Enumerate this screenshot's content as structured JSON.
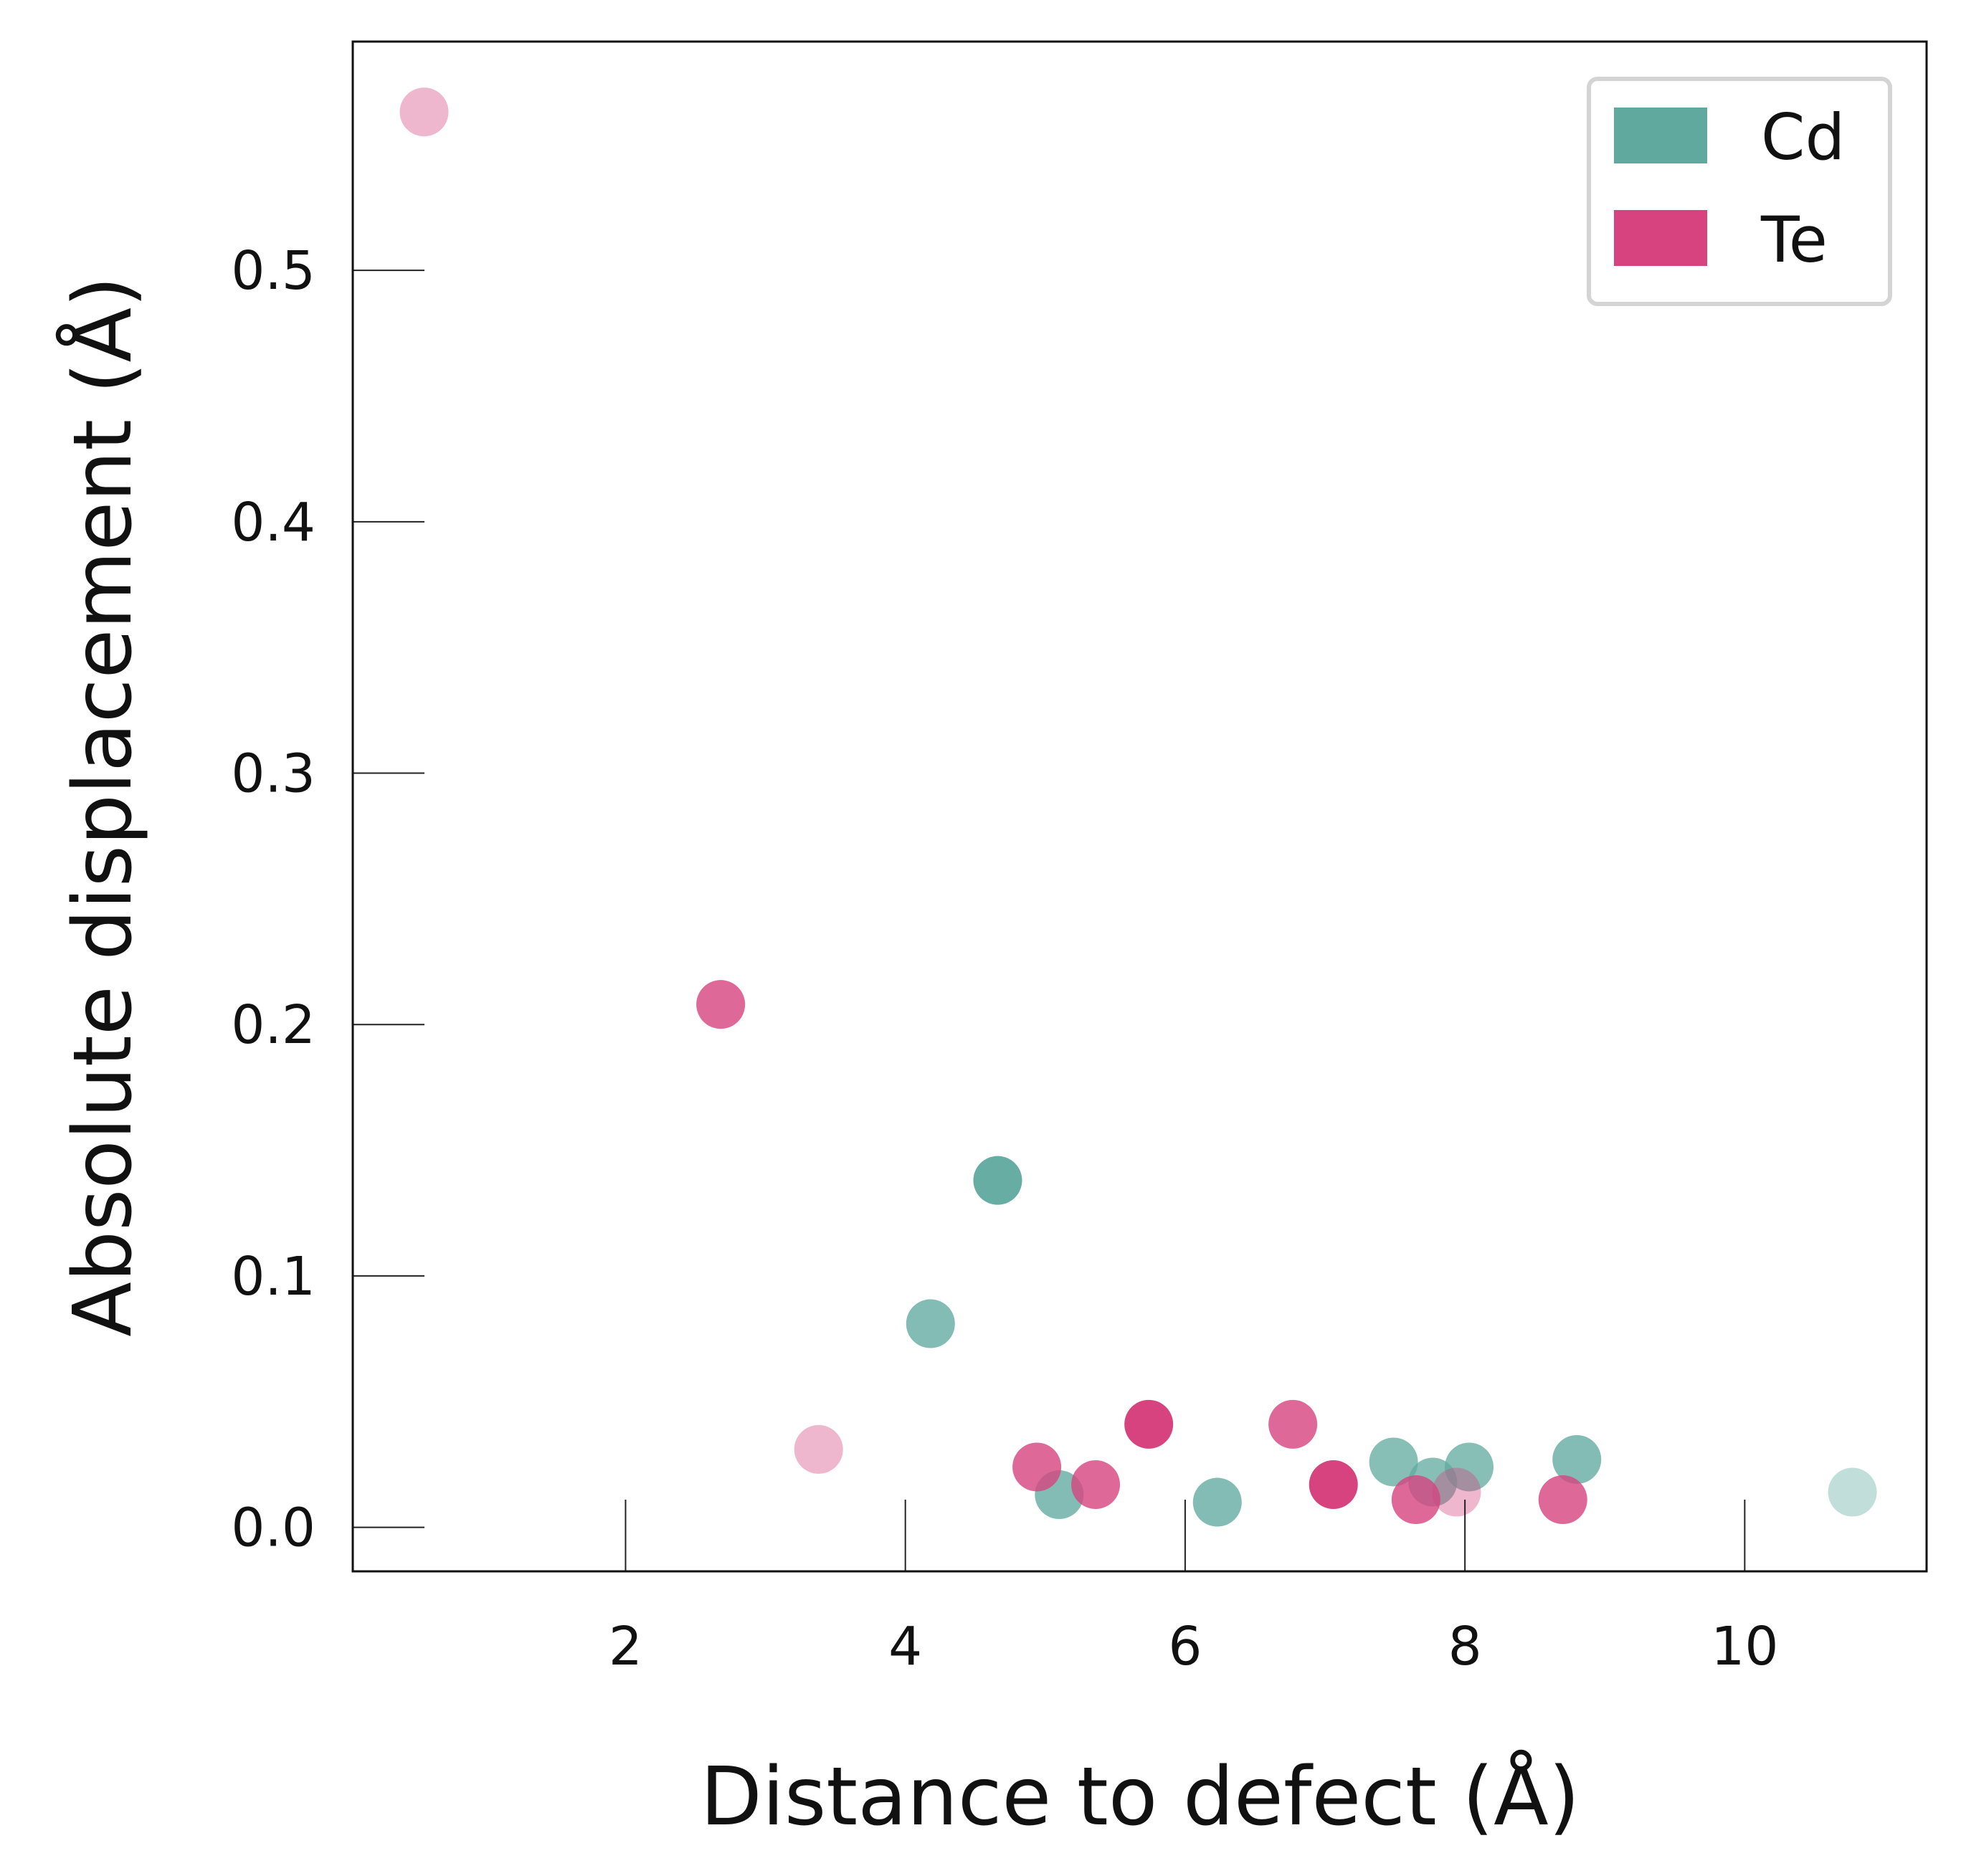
{
  "chart_data": {
    "type": "scatter",
    "title": "",
    "xlabel": "Distance to defect (Å)",
    "ylabel": "Absolute displacement (Å)",
    "xlim": [
      0.05,
      11.3
    ],
    "ylim": [
      -0.0175,
      0.591
    ],
    "xticks": [
      2,
      4,
      6,
      8,
      10
    ],
    "xtick_labels": [
      "2",
      "4",
      "6",
      "8",
      "10"
    ],
    "yticks": [
      0.0,
      0.1,
      0.2,
      0.3,
      0.4,
      0.5
    ],
    "ytick_labels": [
      "0.0",
      "0.1",
      "0.2",
      "0.3",
      "0.4",
      "0.5"
    ],
    "grid": false,
    "legend_position": "top-right",
    "legend": [
      {
        "name": "Cd",
        "color": "#5fa99f"
      },
      {
        "name": "Te",
        "color": "#d6437f"
      }
    ],
    "series": [
      {
        "name": "Cd",
        "color": "#5fa99f",
        "points": [
          {
            "x": 4.18,
            "y": 0.081,
            "alpha": 0.78
          },
          {
            "x": 4.66,
            "y": 0.138,
            "alpha": 0.95
          },
          {
            "x": 5.1,
            "y": 0.013,
            "alpha": 0.78
          },
          {
            "x": 6.23,
            "y": 0.01,
            "alpha": 0.78
          },
          {
            "x": 7.49,
            "y": 0.026,
            "alpha": 0.75
          },
          {
            "x": 7.77,
            "y": 0.018,
            "alpha": 0.75
          },
          {
            "x": 8.03,
            "y": 0.024,
            "alpha": 0.75
          },
          {
            "x": 8.8,
            "y": 0.027,
            "alpha": 0.78
          },
          {
            "x": 10.77,
            "y": 0.014,
            "alpha": 0.38
          }
        ]
      },
      {
        "name": "Te",
        "color": "#d6437f",
        "points": [
          {
            "x": 0.56,
            "y": 0.563,
            "alpha": 0.38
          },
          {
            "x": 2.68,
            "y": 0.208,
            "alpha": 0.8
          },
          {
            "x": 3.38,
            "y": 0.031,
            "alpha": 0.38
          },
          {
            "x": 4.94,
            "y": 0.024,
            "alpha": 0.8
          },
          {
            "x": 5.36,
            "y": 0.017,
            "alpha": 0.8
          },
          {
            "x": 5.74,
            "y": 0.041,
            "alpha": 1.0
          },
          {
            "x": 6.77,
            "y": 0.041,
            "alpha": 0.8
          },
          {
            "x": 7.06,
            "y": 0.017,
            "alpha": 1.0
          },
          {
            "x": 7.65,
            "y": 0.011,
            "alpha": 0.8
          },
          {
            "x": 7.94,
            "y": 0.014,
            "alpha": 0.38
          },
          {
            "x": 8.7,
            "y": 0.011,
            "alpha": 0.8
          }
        ]
      }
    ]
  }
}
